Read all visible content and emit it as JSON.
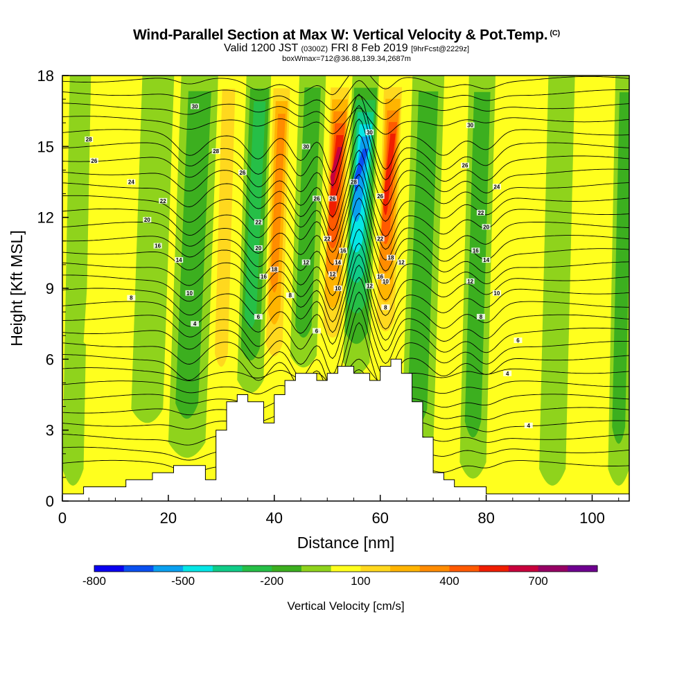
{
  "header": {
    "title": "Wind-Parallel Section at Max W: Vertical Velocity & Pot.Temp.",
    "copyright": "(C)",
    "valid_prefix": "Valid 1200 JST",
    "valid_utc": "(0300Z)",
    "valid_date": "FRI 8 Feb 2019",
    "forecast": "[9hrFcst@2229z]",
    "box_info": "boxWmax=712@36.88,139.34,2687m"
  },
  "chart_data": {
    "type": "heatmap",
    "title": "Wind-Parallel Section at Max W: Vertical Velocity & Pot.Temp.",
    "xlabel": "Distance [nm]",
    "ylabel": "Height [Kft MSL]",
    "xlim": [
      0,
      107
    ],
    "ylim": [
      0,
      18
    ],
    "xticks": [
      0,
      20,
      40,
      60,
      80,
      100
    ],
    "yticks": [
      0,
      3,
      6,
      9,
      12,
      15,
      18
    ],
    "colorbar": {
      "label": "Vertical Velocity [cm/s]",
      "levels": [
        -800,
        -700,
        -600,
        -500,
        -400,
        -300,
        -200,
        -100,
        0,
        100,
        200,
        300,
        400,
        500,
        600,
        700,
        800
      ],
      "tick_labels": [
        "-800",
        "-500",
        "-200",
        "100",
        "400",
        "700"
      ],
      "tick_values": [
        -800,
        -500,
        -200,
        100,
        400,
        700
      ],
      "colors": [
        "#0a00f0",
        "#0a50f0",
        "#0aa0f0",
        "#05e6e6",
        "#10cc88",
        "#26bf47",
        "#3caf1f",
        "#8fd31c",
        "#ffff1e",
        "#ffd81e",
        "#ffb400",
        "#ff8c00",
        "#ff5a00",
        "#f01e00",
        "#c8003c",
        "#960064",
        "#6e0090"
      ]
    },
    "terrain": {
      "x": [
        0,
        2,
        4,
        12,
        17,
        21,
        26,
        27,
        29,
        31,
        33,
        35,
        38,
        40,
        42,
        44,
        46,
        48,
        50,
        52,
        55,
        58,
        60,
        62,
        64,
        66,
        68,
        70,
        72,
        74,
        77,
        80,
        83,
        87,
        90,
        107
      ],
      "y": [
        0.3,
        0.3,
        0.6,
        0.9,
        1.2,
        1.5,
        1.5,
        0.9,
        3.0,
        4.2,
        4.5,
        4.2,
        3.3,
        4.5,
        5.1,
        5.4,
        5.4,
        5.1,
        5.4,
        5.7,
        5.4,
        5.1,
        5.7,
        6.0,
        5.4,
        4.2,
        2.7,
        1.2,
        0.9,
        0.6,
        0.6,
        0.3,
        0.3,
        0.3,
        0.3,
        0.3
      ]
    },
    "velocity_cells": [
      {
        "x0": 0,
        "x1": 4,
        "y0": 0.3,
        "y1": 18,
        "w": -80
      },
      {
        "x0": 4,
        "x1": 13,
        "y0": 6,
        "y1": 18,
        "w": 60
      },
      {
        "x0": 13,
        "x1": 19,
        "y0": 3,
        "y1": 18,
        "w": -120
      },
      {
        "x0": 20,
        "x1": 27,
        "y0": 1.5,
        "y1": 18,
        "w": -220
      },
      {
        "x0": 28,
        "x1": 32,
        "y0": 4,
        "y1": 18,
        "w": 180
      },
      {
        "x0": 33,
        "x1": 38,
        "y0": 4.3,
        "y1": 18,
        "w": -260
      },
      {
        "x0": 38,
        "x1": 42,
        "y0": 4.5,
        "y1": 18,
        "w": 420
      },
      {
        "x0": 43,
        "x1": 48,
        "y0": 5.4,
        "y1": 18,
        "w": -230
      },
      {
        "x0": 49,
        "x1": 53,
        "y0": 5.4,
        "y1": 18,
        "w": 712
      },
      {
        "x0": 53,
        "x1": 58,
        "y0": 5.1,
        "y1": 18,
        "w": -680
      },
      {
        "x0": 59,
        "x1": 63,
        "y0": 5.7,
        "y1": 18,
        "w": 560
      },
      {
        "x0": 64,
        "x1": 70,
        "y0": 1.2,
        "y1": 18,
        "w": -200
      },
      {
        "x0": 75,
        "x1": 80,
        "y0": 0.6,
        "y1": 18,
        "w": -180
      },
      {
        "x0": 90,
        "x1": 95,
        "y0": 0.3,
        "y1": 18,
        "w": -120
      },
      {
        "x0": 103,
        "x1": 107,
        "y0": 0.3,
        "y1": 18,
        "w": -150
      }
    ],
    "theta_labels": [
      {
        "x": 5,
        "y": 15.3,
        "text": "28"
      },
      {
        "x": 6,
        "y": 14.4,
        "text": "26"
      },
      {
        "x": 13,
        "y": 13.5,
        "text": "24"
      },
      {
        "x": 19,
        "y": 12.7,
        "text": "22"
      },
      {
        "x": 16,
        "y": 11.9,
        "text": "20"
      },
      {
        "x": 18,
        "y": 10.8,
        "text": "16"
      },
      {
        "x": 22,
        "y": 10.2,
        "text": "14"
      },
      {
        "x": 13,
        "y": 8.6,
        "text": "8"
      },
      {
        "x": 24,
        "y": 8.8,
        "text": "10"
      },
      {
        "x": 25,
        "y": 7.5,
        "text": "4"
      },
      {
        "x": 25,
        "y": 16.7,
        "text": "30"
      },
      {
        "x": 29,
        "y": 14.8,
        "text": "28"
      },
      {
        "x": 34,
        "y": 13.9,
        "text": "26"
      },
      {
        "x": 37,
        "y": 11.8,
        "text": "22"
      },
      {
        "x": 37,
        "y": 10.7,
        "text": "20"
      },
      {
        "x": 38,
        "y": 9.5,
        "text": "16"
      },
      {
        "x": 37,
        "y": 7.8,
        "text": "6"
      },
      {
        "x": 40,
        "y": 9.8,
        "text": "18"
      },
      {
        "x": 46,
        "y": 10.1,
        "text": "12"
      },
      {
        "x": 43,
        "y": 8.7,
        "text": "8"
      },
      {
        "x": 48,
        "y": 7.2,
        "text": "6"
      },
      {
        "x": 46,
        "y": 15.0,
        "text": "30"
      },
      {
        "x": 48,
        "y": 12.8,
        "text": "26"
      },
      {
        "x": 51,
        "y": 12.8,
        "text": "26"
      },
      {
        "x": 50,
        "y": 11.1,
        "text": "22"
      },
      {
        "x": 53,
        "y": 10.6,
        "text": "16"
      },
      {
        "x": 52,
        "y": 10.1,
        "text": "14"
      },
      {
        "x": 51,
        "y": 9.6,
        "text": "12"
      },
      {
        "x": 52,
        "y": 9.0,
        "text": "10"
      },
      {
        "x": 55,
        "y": 13.5,
        "text": "28"
      },
      {
        "x": 58,
        "y": 15.6,
        "text": "30"
      },
      {
        "x": 60,
        "y": 12.9,
        "text": "26"
      },
      {
        "x": 60,
        "y": 11.1,
        "text": "22"
      },
      {
        "x": 62,
        "y": 10.3,
        "text": "18"
      },
      {
        "x": 60,
        "y": 9.5,
        "text": "16"
      },
      {
        "x": 58,
        "y": 9.1,
        "text": "12"
      },
      {
        "x": 61,
        "y": 8.2,
        "text": "8"
      },
      {
        "x": 64,
        "y": 10.1,
        "text": "12"
      },
      {
        "x": 61,
        "y": 9.3,
        "text": "10"
      },
      {
        "x": 77,
        "y": 15.9,
        "text": "30"
      },
      {
        "x": 76,
        "y": 14.2,
        "text": "26"
      },
      {
        "x": 82,
        "y": 13.3,
        "text": "24"
      },
      {
        "x": 79,
        "y": 12.2,
        "text": "22"
      },
      {
        "x": 80,
        "y": 11.6,
        "text": "20"
      },
      {
        "x": 78,
        "y": 10.6,
        "text": "16"
      },
      {
        "x": 80,
        "y": 10.2,
        "text": "14"
      },
      {
        "x": 77,
        "y": 9.3,
        "text": "12"
      },
      {
        "x": 82,
        "y": 8.8,
        "text": "10"
      },
      {
        "x": 79,
        "y": 7.8,
        "text": "8"
      },
      {
        "x": 86,
        "y": 6.8,
        "text": "6"
      },
      {
        "x": 84,
        "y": 5.4,
        "text": "4"
      },
      {
        "x": 88,
        "y": 3.2,
        "text": "4"
      }
    ]
  }
}
